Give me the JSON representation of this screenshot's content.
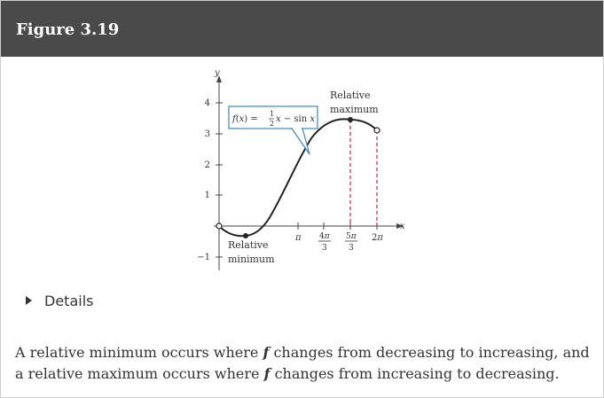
{
  "figure_title": "Figure 3.19",
  "details_label": "Details",
  "description": {
    "part1": "A relative minimum occurs where",
    "f1": "f",
    "part2": "changes from decreasing to increasing, and a relative maximum occurs where",
    "f2": "f",
    "part3": "changes from increasing to decreasing."
  },
  "chart_data": {
    "type": "line",
    "function_label": "f(x) = ½x − sin x",
    "xlabel": "x",
    "ylabel": "y",
    "x_ticks": [
      "π",
      "4π/3",
      "5π/3",
      "2π"
    ],
    "y_ticks": [
      "−1",
      "1",
      "2",
      "3",
      "4"
    ],
    "annotations": [
      {
        "text": "Relative maximum",
        "x": "5π/3",
        "y": 3.48
      },
      {
        "text": "Relative minimum",
        "x": "π/3",
        "y": -0.34
      }
    ],
    "endpoints": [
      {
        "x": 0,
        "y": 0,
        "type": "open"
      },
      {
        "x": "2π",
        "y": 3.14,
        "type": "open"
      }
    ],
    "xlim": [
      "0",
      "2π"
    ],
    "ylim": [
      -1,
      4
    ],
    "grid": false
  }
}
